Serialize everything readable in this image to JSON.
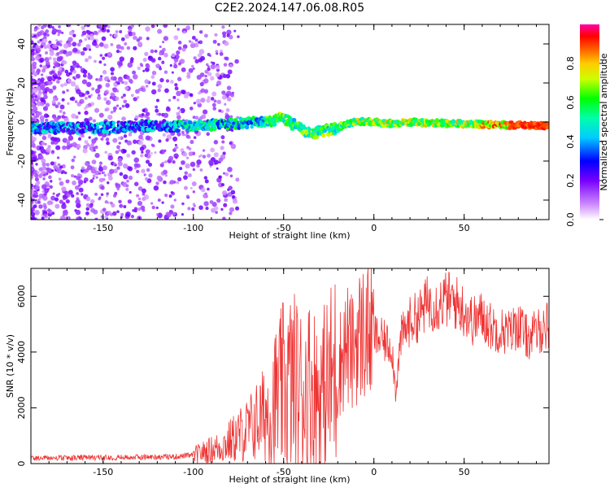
{
  "title": "C2E2.2024.147.06.08.R05",
  "chart_data": [
    {
      "type": "heatmap",
      "xlabel": "Height of straight line (km)",
      "ylabel": "Frequency (Hz)",
      "xlim": [
        -190,
        97
      ],
      "ylim": [
        -50,
        50
      ],
      "xticks": [
        -150,
        -100,
        -50,
        0,
        50
      ],
      "yticks": [
        -40,
        -20,
        0,
        20,
        40
      ],
      "colorbar": {
        "label": "Normalized spectral amplitude",
        "range": [
          0,
          1
        ],
        "ticks": [
          0.0,
          0.2,
          0.4,
          0.6,
          0.8
        ],
        "colormap": [
          "#ffffff",
          "#cc88ff",
          "#7700ff",
          "#0000ff",
          "#00ffff",
          "#00ff00",
          "#ffff00",
          "#ff7f00",
          "#ff0000",
          "#ff00aa"
        ]
      },
      "ridge": {
        "x": [
          -190,
          -150,
          -120,
          -100,
          -80,
          -60,
          -50,
          -45,
          -40,
          -35,
          -30,
          -25,
          -20,
          -15,
          -10,
          0,
          10,
          20,
          50,
          97
        ],
        "y": [
          -3,
          -3,
          -2,
          -2,
          -1,
          0,
          2,
          -1,
          -4,
          -6,
          -5,
          -4,
          -3,
          -1,
          0,
          0,
          -1,
          0,
          -1,
          -2
        ]
      }
    },
    {
      "type": "line",
      "xlabel": "Height of straight line (km)",
      "ylabel": "SNR (10 * v/v)",
      "xlim": [
        -190,
        97
      ],
      "ylim": [
        0,
        7000
      ],
      "xticks": [
        -150,
        -100,
        -50,
        0,
        50
      ],
      "yticks": [
        0,
        2000,
        4000,
        6000
      ],
      "series": [
        {
          "color": "#ee3333",
          "x": [
            -190,
            -170,
            -150,
            -130,
            -110,
            -100,
            -95,
            -90,
            -85,
            -80,
            -75,
            -70,
            -65,
            -60,
            -55,
            -50,
            -45,
            -40,
            -35,
            -30,
            -25,
            -20,
            -15,
            -12,
            -10,
            -5,
            0,
            5,
            10,
            12,
            15,
            20,
            25,
            30,
            35,
            40,
            45,
            50,
            55,
            60,
            65,
            70,
            75,
            80,
            85,
            90,
            97
          ],
          "y": [
            200,
            200,
            220,
            230,
            250,
            300,
            400,
            500,
            600,
            800,
            1000,
            1200,
            1500,
            1800,
            2200,
            2700,
            2900,
            2600,
            2800,
            2400,
            2900,
            3400,
            4300,
            3900,
            4500,
            4700,
            4600,
            4400,
            4200,
            2600,
            4500,
            5100,
            5300,
            5800,
            5700,
            5900,
            5800,
            5500,
            5100,
            5300,
            4900,
            4800,
            4700,
            5000,
            4500,
            4700,
            5000
          ]
        }
      ]
    }
  ]
}
